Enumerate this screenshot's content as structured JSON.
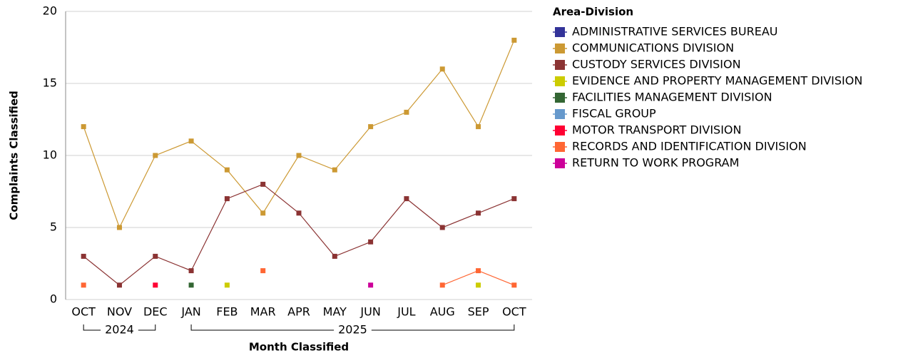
{
  "chart_data": {
    "type": "line",
    "x_label": "Month Classified",
    "y_label": "Complaints Classified",
    "categories": [
      "OCT",
      "NOV",
      "DEC",
      "JAN",
      "FEB",
      "MAR",
      "APR",
      "MAY",
      "JUN",
      "JUL",
      "AUG",
      "SEP",
      "OCT"
    ],
    "x_groups": [
      {
        "label": "2024",
        "start": 0,
        "end": 2
      },
      {
        "label": "2025",
        "start": 3,
        "end": 12
      }
    ],
    "ylim": [
      0,
      20
    ],
    "yticks": [
      0,
      5,
      10,
      15,
      20
    ],
    "grid": true,
    "legend_title": "Area-Division",
    "series": [
      {
        "name": "ADMINISTRATIVE SERVICES BUREAU",
        "color": "#333399",
        "values": [
          null,
          null,
          null,
          null,
          null,
          null,
          null,
          null,
          null,
          null,
          null,
          null,
          null
        ]
      },
      {
        "name": "COMMUNICATIONS DIVISION",
        "color": "#cc9933",
        "values": [
          12,
          5,
          10,
          11,
          9,
          6,
          10,
          9,
          12,
          13,
          16,
          12,
          18
        ]
      },
      {
        "name": "CUSTODY SERVICES DIVISION",
        "color": "#8b3333",
        "values": [
          3,
          1,
          3,
          2,
          7,
          8,
          6,
          3,
          4,
          7,
          5,
          6,
          7
        ]
      },
      {
        "name": "EVIDENCE AND PROPERTY MANAGEMENT DIVISION",
        "color": "#cccc00",
        "values": [
          null,
          null,
          null,
          null,
          1,
          null,
          null,
          null,
          null,
          null,
          null,
          1,
          null
        ]
      },
      {
        "name": "FACILITIES MANAGEMENT DIVISION",
        "color": "#336633",
        "values": [
          null,
          null,
          null,
          1,
          null,
          null,
          null,
          null,
          null,
          null,
          null,
          null,
          null
        ]
      },
      {
        "name": "FISCAL GROUP",
        "color": "#6699cc",
        "values": [
          null,
          null,
          null,
          null,
          null,
          null,
          null,
          null,
          null,
          null,
          null,
          null,
          null
        ]
      },
      {
        "name": "MOTOR TRANSPORT DIVISION",
        "color": "#ff0033",
        "values": [
          null,
          null,
          1,
          null,
          null,
          null,
          null,
          null,
          null,
          null,
          null,
          null,
          null
        ]
      },
      {
        "name": "RECORDS AND IDENTIFICATION DIVISION",
        "color": "#ff6633",
        "values": [
          1,
          null,
          null,
          null,
          null,
          2,
          null,
          null,
          null,
          null,
          1,
          2,
          1
        ]
      },
      {
        "name": "RETURN TO WORK PROGRAM",
        "color": "#cc0099",
        "values": [
          null,
          null,
          null,
          null,
          null,
          null,
          null,
          null,
          1,
          null,
          null,
          null,
          null
        ]
      }
    ]
  }
}
